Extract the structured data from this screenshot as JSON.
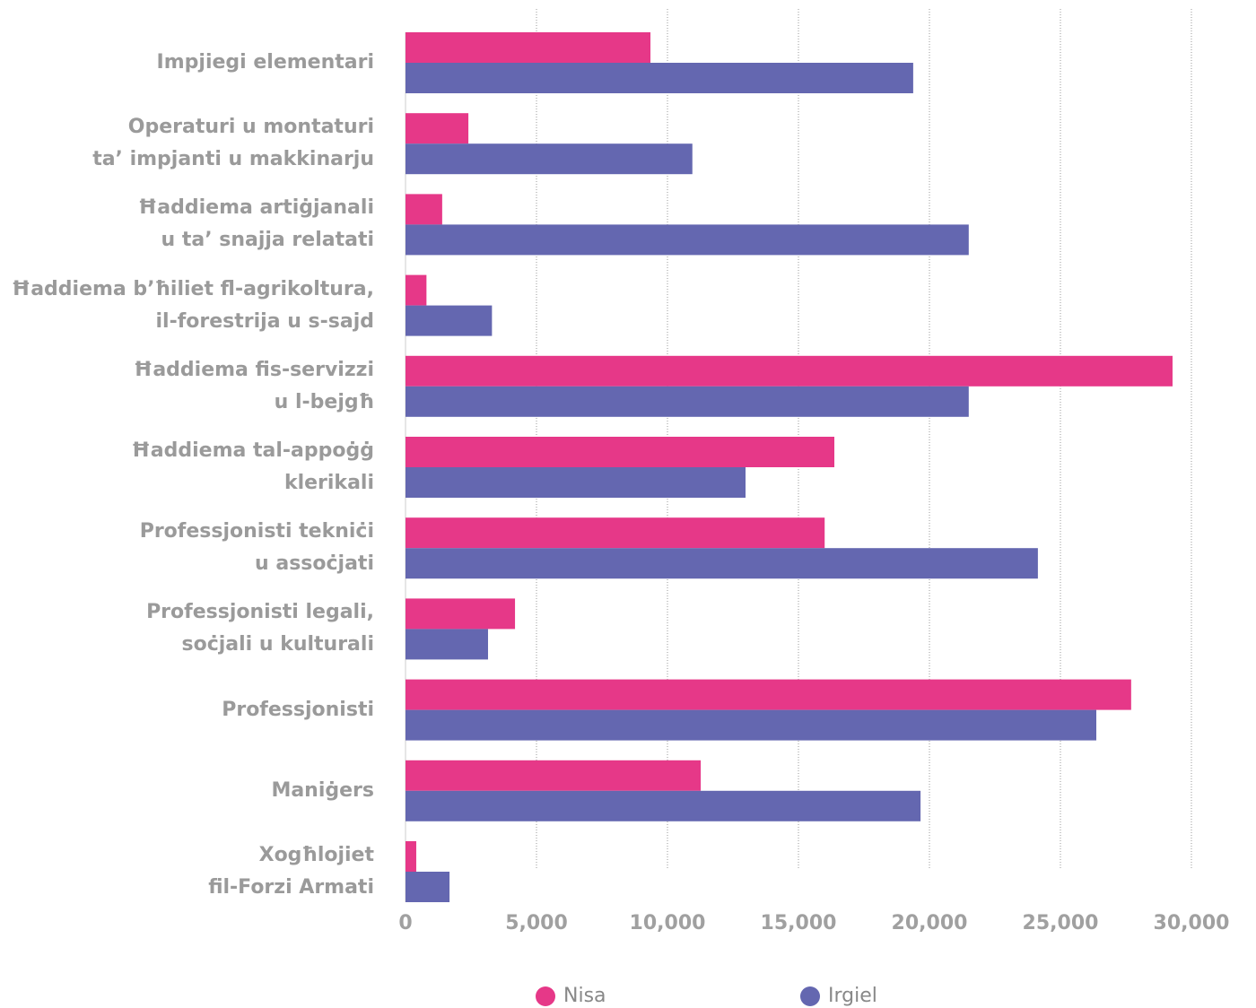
{
  "chart_data": {
    "type": "hbar",
    "categories": [
      "Impjiegi elementari",
      "Operaturi u montaturi\nta’ impjanti u makkinarju",
      "Ħaddiema artiġjanali\nu ta’ snajja relatati",
      "Ħaddiema b’ħiliet fl-agrikoltura,\nil-forestrija u s-sajd",
      "Ħaddiema fis-servizzi\nu l-bejgħ",
      "Ħaddiema tal-appoġġ\nklerikali",
      "Professjonisti tekniċi\nu assoċjati",
      "Professjonisti legali,\nsoċjali u kulturali",
      "Professjonisti",
      "Maniġers",
      "Xogħlojiet\nfil-Forzi Armati"
    ],
    "series": [
      {
        "name": "Nisa",
        "color": "#e63888",
        "values": [
          9350,
          2400,
          1400,
          800,
          29280,
          16370,
          16000,
          4180,
          27700,
          11270,
          410
        ]
      },
      {
        "name": "Irgiel",
        "color": "#6467b0",
        "values": [
          19380,
          10950,
          21500,
          3300,
          21500,
          12980,
          24140,
          3150,
          26370,
          19660,
          1680
        ]
      }
    ],
    "xlim": [
      0,
      30000
    ],
    "xticks": [
      0,
      {
        "value": 5000,
        "label": "5,000"
      },
      {
        "value": 10000,
        "label": "10,000"
      },
      {
        "value": 15000,
        "label": "15,000"
      },
      {
        "value": 20000,
        "label": "20,000"
      },
      {
        "value": 25000,
        "label": "25,000"
      },
      {
        "value": 30000,
        "label": "30,000"
      }
    ],
    "grid": true,
    "legend": "bottom"
  }
}
